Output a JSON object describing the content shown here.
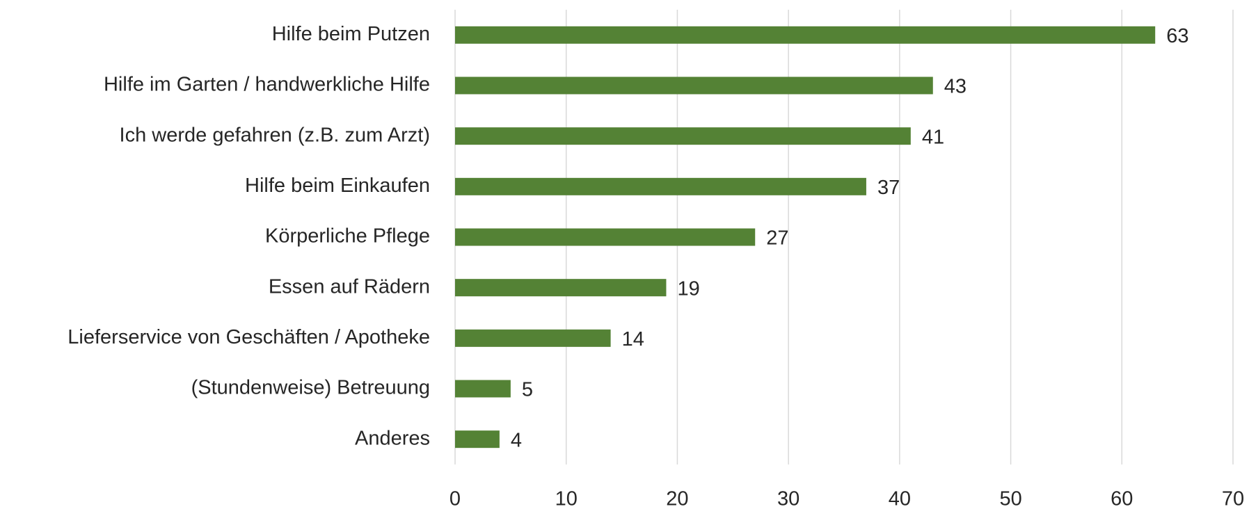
{
  "chart_data": {
    "type": "hbar",
    "categories": [
      "Hilfe beim Putzen",
      "Hilfe im Garten / handwerkliche Hilfe",
      "Ich werde gefahren (z.B. zum Arzt)",
      "Hilfe beim Einkaufen",
      "Körperliche Pflege",
      "Essen auf Rädern",
      "Lieferservice von Geschäften / Apotheke",
      "(Stundenweise) Betreuung",
      "Anderes"
    ],
    "values": [
      63,
      43,
      41,
      37,
      27,
      19,
      14,
      5,
      4
    ],
    "color": "#548235",
    "xlim": [
      0,
      70
    ],
    "xticks": [
      0,
      10,
      20,
      30,
      40,
      50,
      60,
      70
    ],
    "grid": true
  }
}
